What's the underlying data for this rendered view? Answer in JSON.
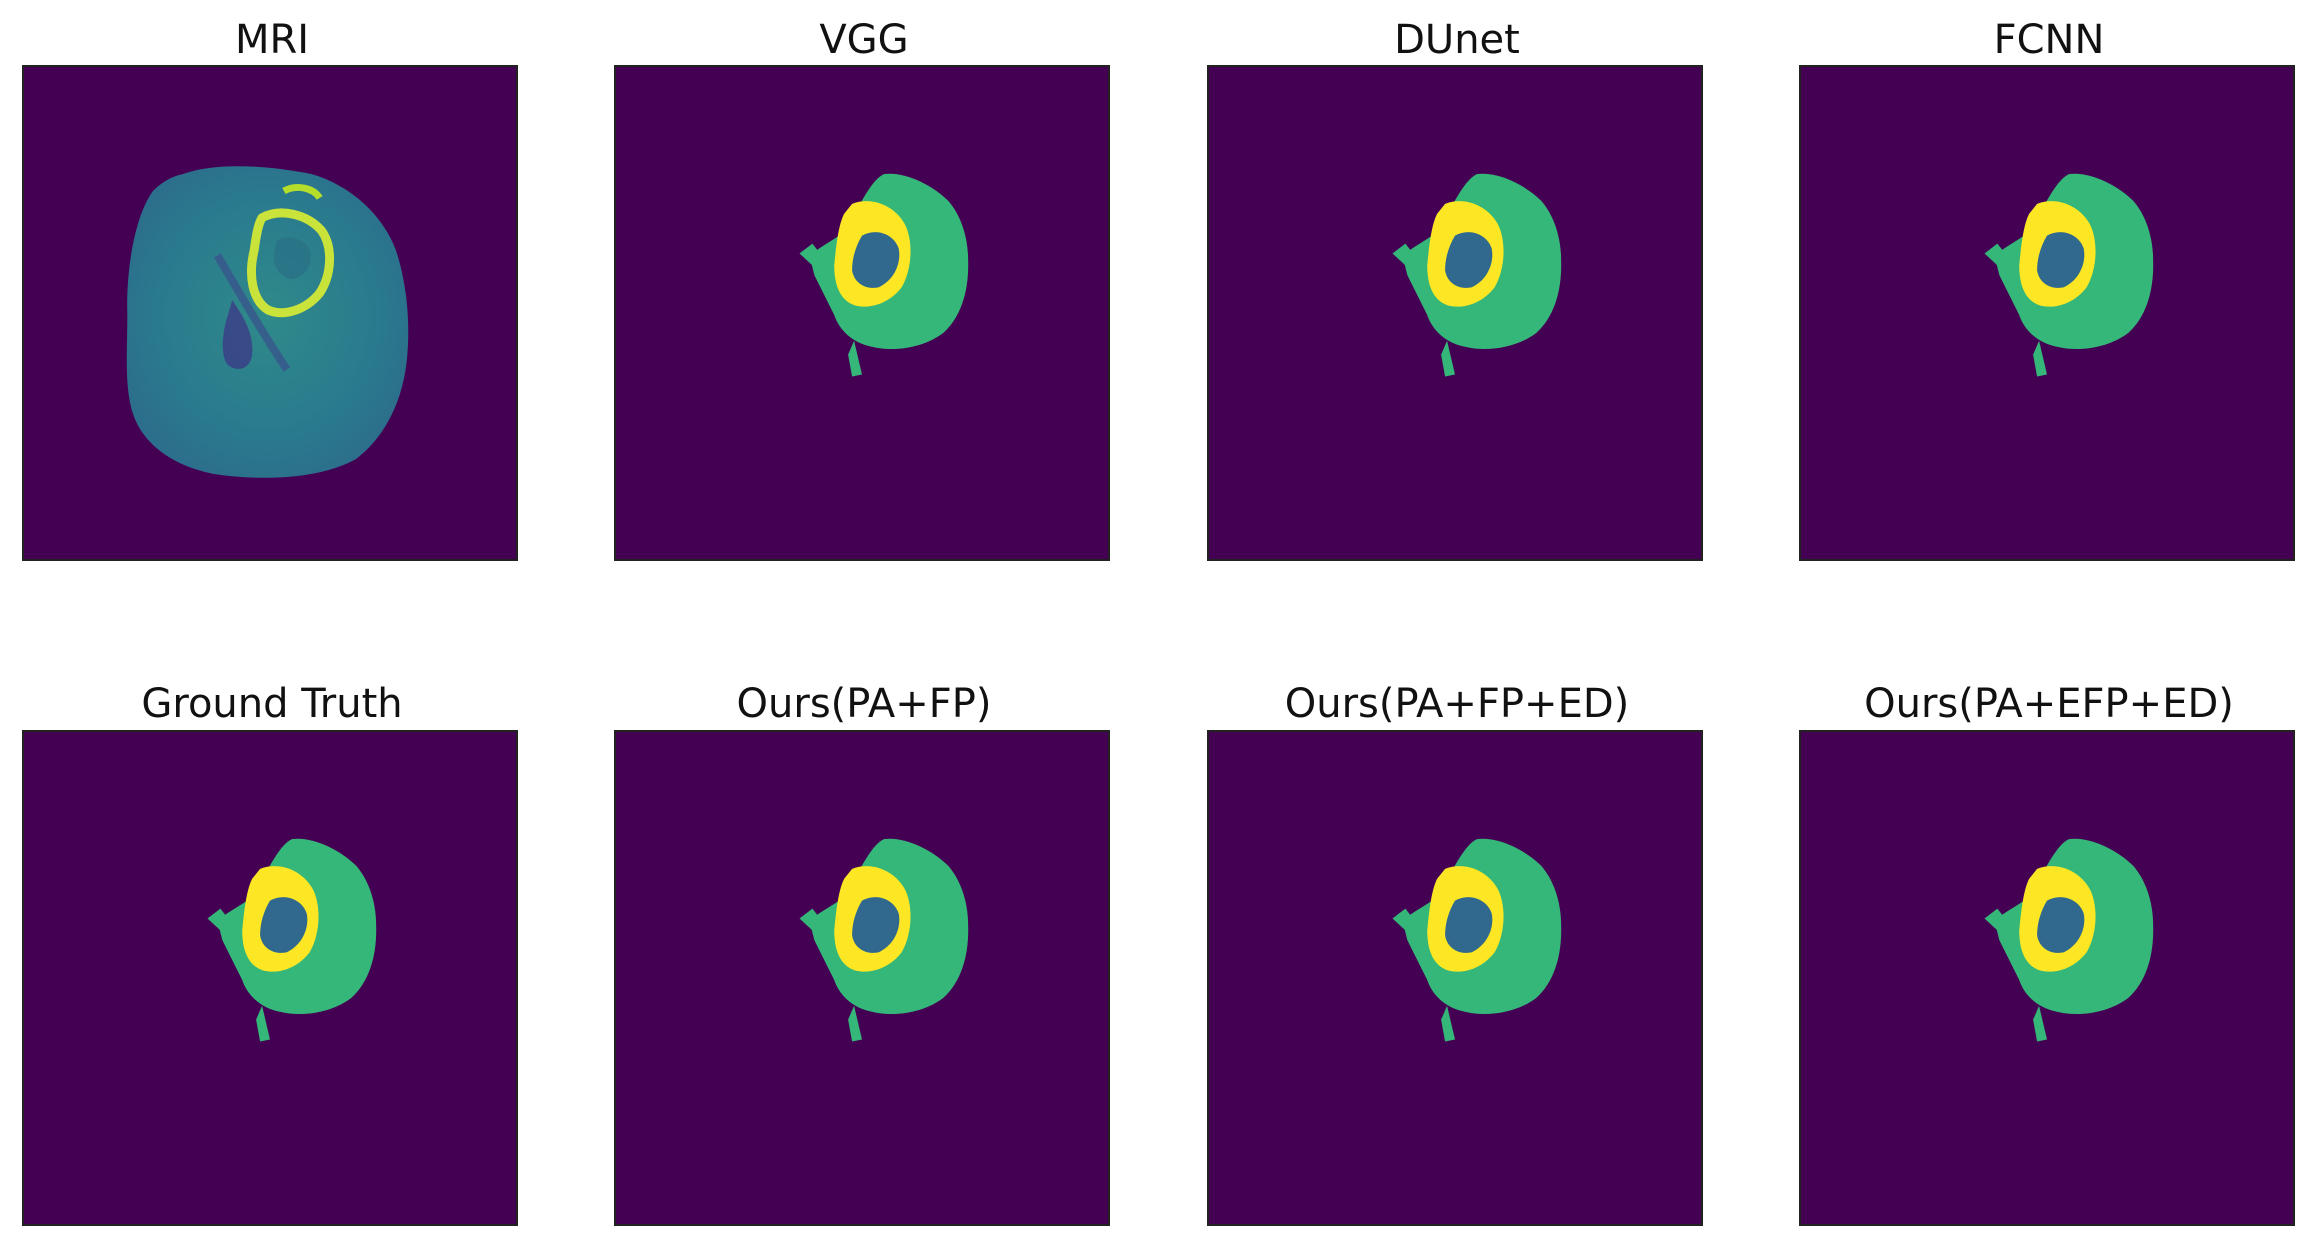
{
  "panels": [
    {
      "id": "mri",
      "title": "MRI",
      "kind": "mri"
    },
    {
      "id": "vgg",
      "title": "VGG",
      "kind": "seg"
    },
    {
      "id": "dunet",
      "title": "DUnet",
      "kind": "seg"
    },
    {
      "id": "fcnn",
      "title": "FCNN",
      "kind": "seg"
    },
    {
      "id": "ground-truth",
      "title": "Ground Truth",
      "kind": "seg"
    },
    {
      "id": "ours-pa-fp",
      "title": "Ours(PA+FP)",
      "kind": "seg"
    },
    {
      "id": "ours-pa-fp-ed",
      "title": "Ours(PA+FP+ED)",
      "kind": "seg"
    },
    {
      "id": "ours-pa-efp-ed",
      "title": "Ours(PA+EFP+ED)",
      "kind": "seg"
    }
  ],
  "colors": {
    "background": "#440154",
    "edema": "#35b779",
    "enhancing": "#fde725",
    "necrosis": "#31688e",
    "brain": "#2a788e"
  }
}
